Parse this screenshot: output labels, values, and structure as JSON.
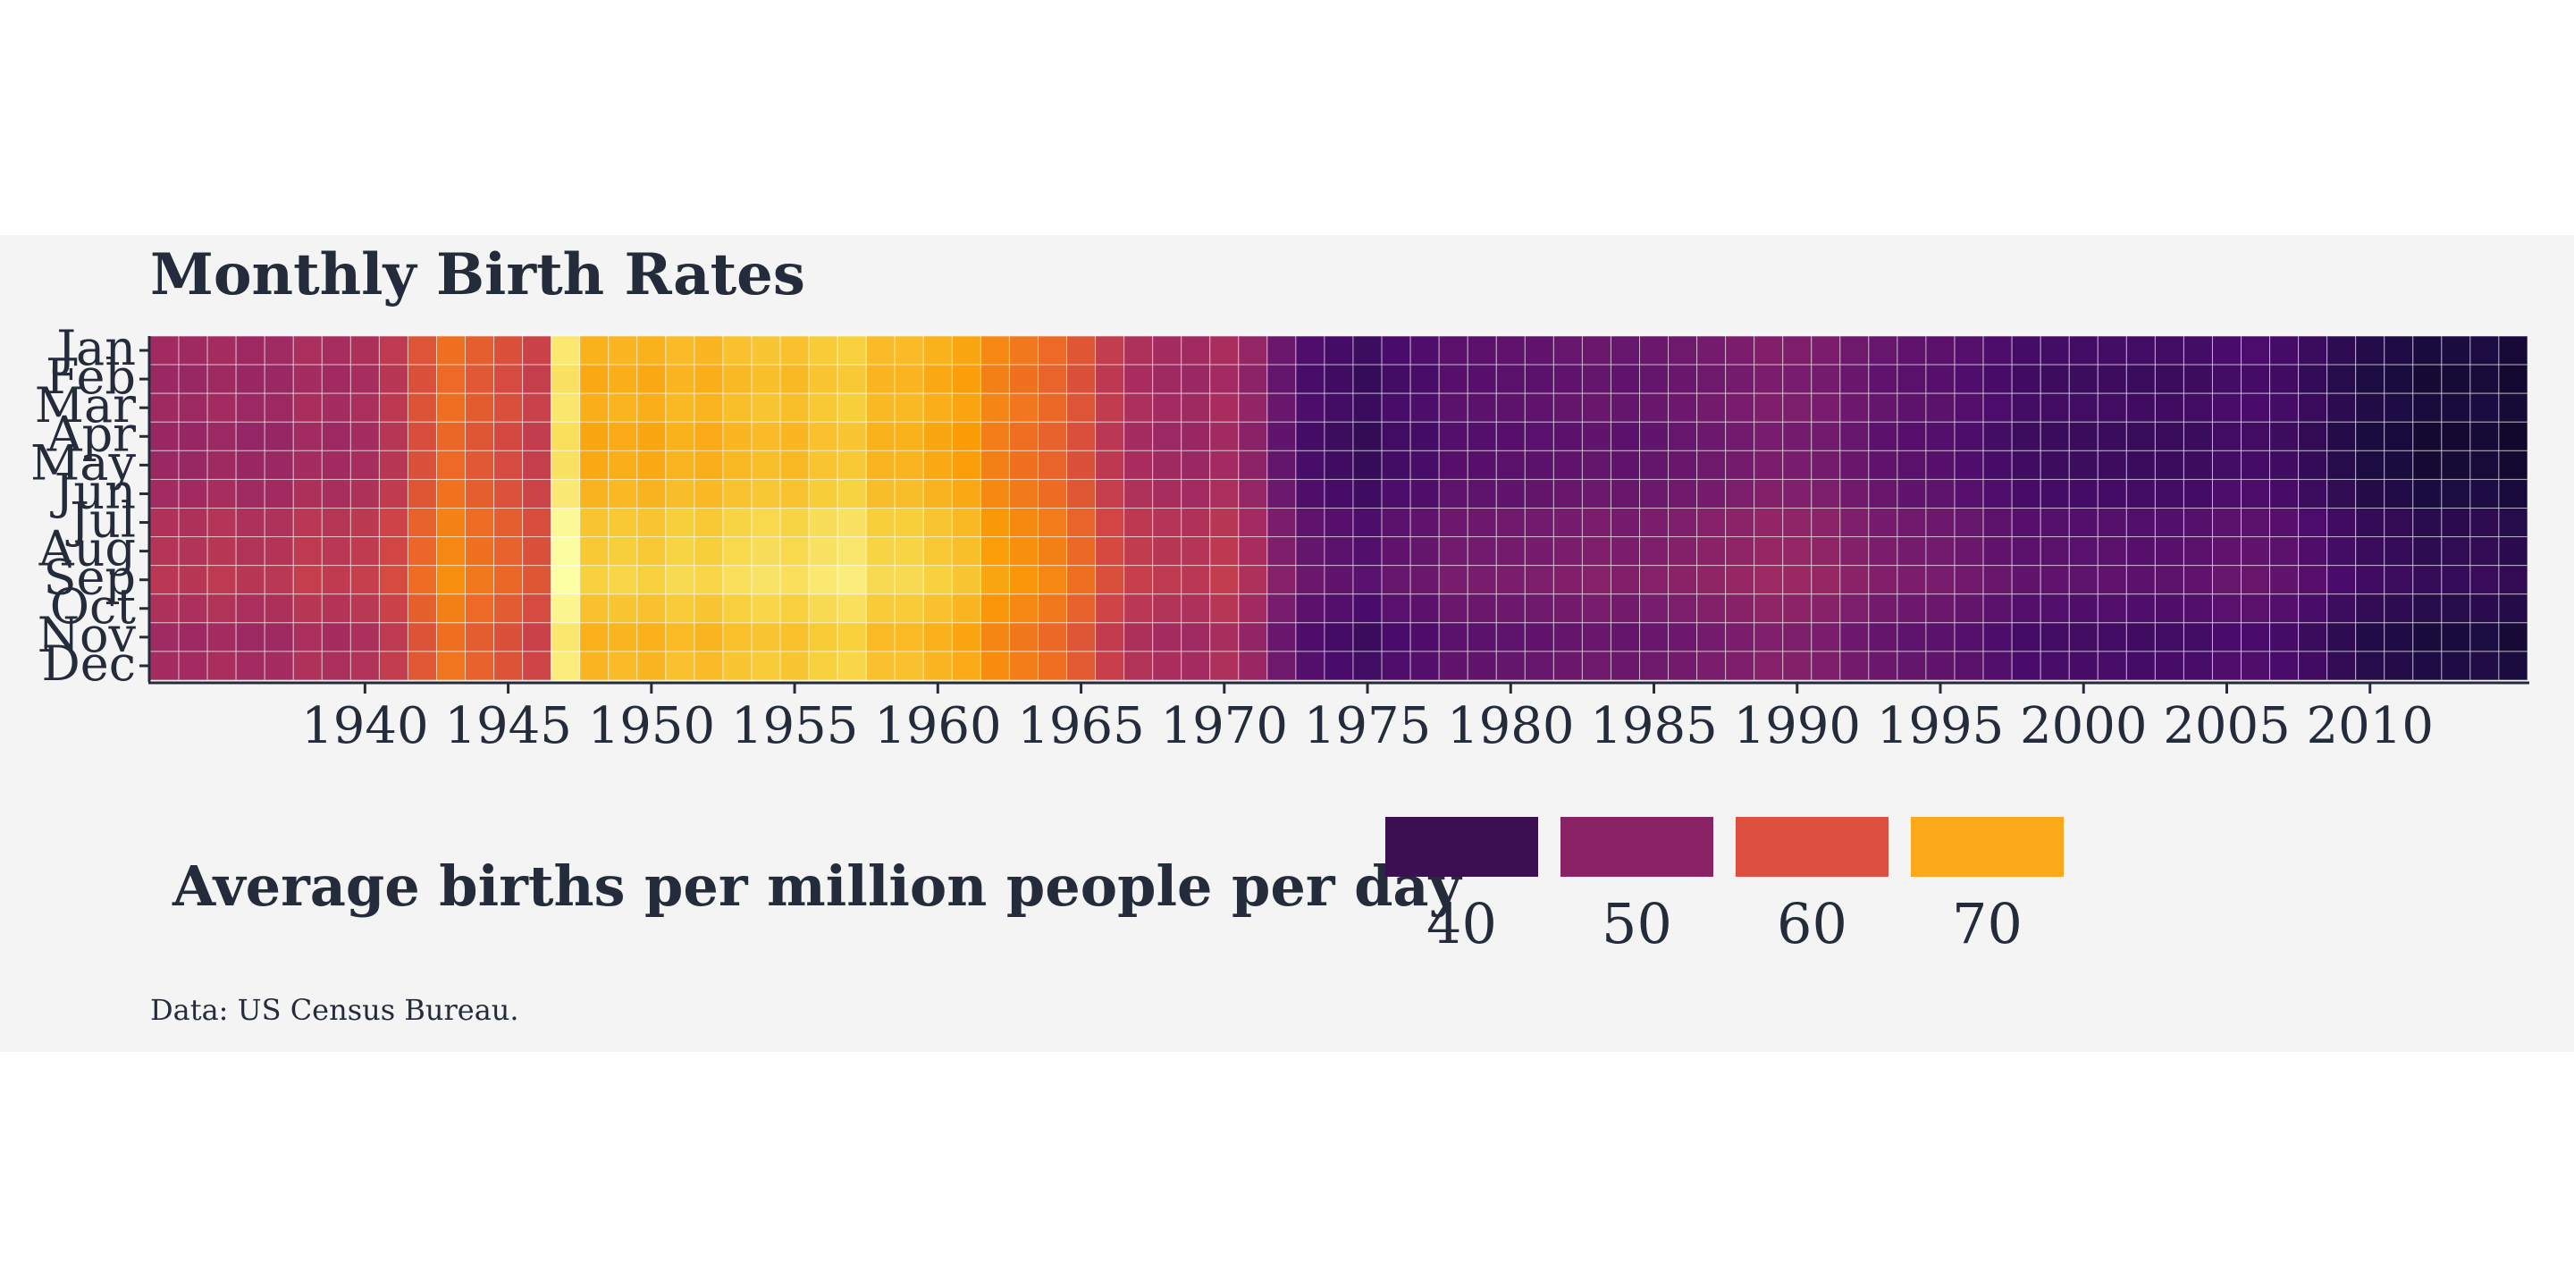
{
  "chart_data": {
    "type": "heatmap",
    "title": "Monthly Birth Rates",
    "caption": "Data: US Census Bureau.",
    "months": [
      "Jan",
      "Feb",
      "Mar",
      "Apr",
      "May",
      "Jun",
      "Jul",
      "Aug",
      "Sep",
      "Oct",
      "Nov",
      "Dec"
    ],
    "year_start": 1933,
    "year_end": 2015,
    "x_ticks": [
      "1940",
      "1945",
      "1950",
      "1955",
      "1960",
      "1965",
      "1970",
      "1975",
      "1980",
      "1985",
      "1990",
      "1995",
      "2000",
      "2005",
      "2010"
    ],
    "legend": {
      "title": "Average births per million people per day",
      "position": "bottom",
      "labels": [
        "40",
        "50",
        "60",
        "70"
      ],
      "colors": [
        "#3b0f52",
        "#8a2266",
        "#dd4f3f",
        "#fba81a"
      ]
    },
    "color_scale": "inferno",
    "value_range": [
      30,
      80
    ],
    "annual_values": [
      50.0,
      49.8,
      50.5,
      49.7,
      49.9,
      51.2,
      50.7,
      51.4,
      53.5,
      57.8,
      61.2,
      59.0,
      57.2,
      55.0,
      73.0,
      67.5,
      68.0,
      67.5,
      68.5,
      68.0,
      69.0,
      69.5,
      69.0,
      70.0,
      70.5,
      68.5,
      68.5,
      67.5,
      66.5,
      63.5,
      62.0,
      60.5,
      58.0,
      54.0,
      51.5,
      50.5,
      50.0,
      51.0,
      48.5,
      44.0,
      41.0,
      40.0,
      39.0,
      40.5,
      41.0,
      42.5,
      42.5,
      42.8,
      43.0,
      43.5,
      44.0,
      43.5,
      44.0,
      44.5,
      45.2,
      45.8,
      46.5,
      46.2,
      45.8,
      44.5,
      43.5,
      42.8,
      42.5,
      41.7,
      40.8,
      40.0,
      39.8,
      39.7,
      39.8,
      39.5,
      39.6,
      39.8,
      40.5,
      40.6,
      40.0,
      38.8,
      37.5,
      36.3,
      36.0,
      35.2,
      35.3,
      35.6,
      34.8
    ],
    "monthly_offsets": [
      -0.5,
      -1.2,
      -0.7,
      -1.5,
      -1.2,
      -0.3,
      1.3,
      1.8,
      2.5,
      1.0,
      -0.6,
      0.0
    ]
  }
}
